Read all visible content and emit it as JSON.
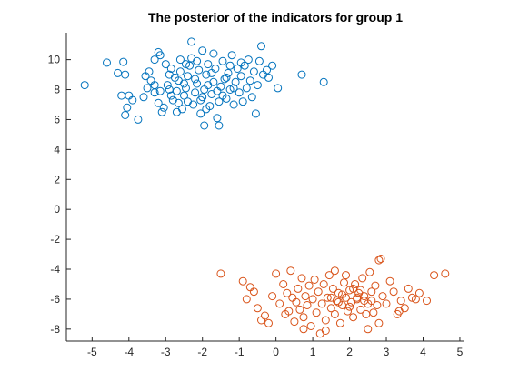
{
  "chart_data": {
    "type": "scatter",
    "title": "The posterior of the indicators for group 1",
    "xlabel": "",
    "ylabel": "",
    "xlim": [
      -5.7,
      5.1
    ],
    "ylim": [
      -8.8,
      11.8
    ],
    "xticks": [
      -5,
      -4,
      -3,
      -2,
      -1,
      0,
      1,
      2,
      3,
      4,
      5
    ],
    "yticks": [
      -8,
      -6,
      -4,
      -2,
      0,
      2,
      4,
      6,
      8,
      10
    ],
    "grid": false,
    "legend": "none",
    "marker": "open-circle",
    "series": [
      {
        "color": "#0072BD",
        "points": [
          [
            -5.2,
            8.3
          ],
          [
            -4.6,
            9.8
          ],
          [
            -4.3,
            9.1
          ],
          [
            -4.15,
            9.85
          ],
          [
            -4.1,
            9.0
          ],
          [
            -4.2,
            7.6
          ],
          [
            -4.0,
            7.6
          ],
          [
            -3.9,
            7.3
          ],
          [
            -4.05,
            6.8
          ],
          [
            -4.1,
            6.3
          ],
          [
            -3.75,
            6.0
          ],
          [
            -3.6,
            7.5
          ],
          [
            -3.5,
            8.1
          ],
          [
            -3.45,
            9.2
          ],
          [
            -3.3,
            10.0
          ],
          [
            -3.2,
            10.5
          ],
          [
            -3.15,
            10.3
          ],
          [
            -3.4,
            8.6
          ],
          [
            -3.3,
            7.8
          ],
          [
            -3.2,
            7.1
          ],
          [
            -3.1,
            6.5
          ],
          [
            -3.05,
            6.8
          ],
          [
            -2.95,
            8.3
          ],
          [
            -2.9,
            9.0
          ],
          [
            -2.85,
            9.4
          ],
          [
            -2.8,
            7.3
          ],
          [
            -2.7,
            7.9
          ],
          [
            -2.65,
            8.6
          ],
          [
            -2.6,
            9.2
          ],
          [
            -2.55,
            6.7
          ],
          [
            -2.5,
            7.6
          ],
          [
            -2.45,
            8.1
          ],
          [
            -2.4,
            8.9
          ],
          [
            -2.35,
            9.6
          ],
          [
            -2.3,
            10.1
          ],
          [
            -2.25,
            7.0
          ],
          [
            -2.2,
            7.8
          ],
          [
            -2.15,
            8.4
          ],
          [
            -2.1,
            9.3
          ],
          [
            -2.05,
            6.4
          ],
          [
            -2.0,
            7.5
          ],
          [
            -1.95,
            8.0
          ],
          [
            -1.9,
            9.0
          ],
          [
            -1.85,
            9.7
          ],
          [
            -1.8,
            6.9
          ],
          [
            -1.75,
            7.7
          ],
          [
            -1.7,
            8.5
          ],
          [
            -1.65,
            9.4
          ],
          [
            -1.6,
            6.1
          ],
          [
            -1.55,
            7.2
          ],
          [
            -1.5,
            8.2
          ],
          [
            -1.45,
            9.9
          ],
          [
            -1.4,
            8.7
          ],
          [
            -1.35,
            7.4
          ],
          [
            -1.3,
            9.1
          ],
          [
            -1.25,
            8.0
          ],
          [
            -1.2,
            10.3
          ],
          [
            -1.15,
            7.0
          ],
          [
            -1.1,
            8.5
          ],
          [
            -1.05,
            9.4
          ],
          [
            -1.0,
            7.8
          ],
          [
            -0.95,
            8.9
          ],
          [
            -0.9,
            7.2
          ],
          [
            -0.85,
            9.6
          ],
          [
            -0.8,
            8.1
          ],
          [
            -0.75,
            10.0
          ],
          [
            -0.7,
            8.6
          ],
          [
            -0.65,
            7.5
          ],
          [
            -0.6,
            9.2
          ],
          [
            -0.55,
            6.4
          ],
          [
            -0.5,
            8.3
          ],
          [
            -0.45,
            9.9
          ],
          [
            -0.4,
            10.9
          ],
          [
            -0.35,
            9.0
          ],
          [
            -0.25,
            9.3
          ],
          [
            -0.2,
            8.8
          ],
          [
            -0.1,
            9.6
          ],
          [
            0.05,
            8.1
          ],
          [
            0.7,
            9.0
          ],
          [
            1.3,
            8.5
          ],
          [
            -2.3,
            11.2
          ],
          [
            -2.0,
            10.6
          ],
          [
            -1.7,
            10.4
          ],
          [
            -1.95,
            5.6
          ],
          [
            -1.55,
            5.6
          ],
          [
            -3.3,
            8.3
          ],
          [
            -2.75,
            8.8
          ],
          [
            -2.5,
            8.4
          ],
          [
            -1.85,
            8.3
          ],
          [
            -1.35,
            8.8
          ],
          [
            -2.15,
            9.9
          ],
          [
            -2.65,
            7.1
          ],
          [
            -3.0,
            9.7
          ],
          [
            -2.4,
            7.2
          ],
          [
            -1.75,
            9.1
          ],
          [
            -2.9,
            8.0
          ],
          [
            -2.2,
            8.7
          ],
          [
            -1.6,
            7.9
          ],
          [
            -2.6,
            10.0
          ],
          [
            -1.25,
            9.6
          ],
          [
            -3.55,
            8.9
          ],
          [
            -2.85,
            7.6
          ],
          [
            -2.05,
            7.3
          ],
          [
            -1.45,
            7.6
          ],
          [
            -0.95,
            9.8
          ],
          [
            -3.15,
            7.9
          ],
          [
            -2.45,
            9.7
          ],
          [
            -1.9,
            6.7
          ],
          [
            -2.7,
            6.5
          ],
          [
            -1.15,
            8.1
          ]
        ]
      },
      {
        "color": "#D95319",
        "points": [
          [
            -1.5,
            -4.3
          ],
          [
            -0.9,
            -4.8
          ],
          [
            -0.7,
            -5.2
          ],
          [
            -0.6,
            -5.5
          ],
          [
            -0.8,
            -6.0
          ],
          [
            -0.5,
            -6.6
          ],
          [
            -0.3,
            -7.1
          ],
          [
            -0.4,
            -7.4
          ],
          [
            -0.2,
            -7.6
          ],
          [
            -0.1,
            -5.8
          ],
          [
            0.0,
            -4.3
          ],
          [
            0.1,
            -6.3
          ],
          [
            0.2,
            -5.0
          ],
          [
            0.25,
            -7.0
          ],
          [
            0.3,
            -5.6
          ],
          [
            0.35,
            -6.8
          ],
          [
            0.4,
            -4.1
          ],
          [
            0.45,
            -5.9
          ],
          [
            0.5,
            -7.5
          ],
          [
            0.55,
            -6.2
          ],
          [
            0.6,
            -5.3
          ],
          [
            0.65,
            -6.7
          ],
          [
            0.7,
            -4.6
          ],
          [
            0.75,
            -7.2
          ],
          [
            0.8,
            -5.8
          ],
          [
            0.85,
            -6.4
          ],
          [
            0.9,
            -5.1
          ],
          [
            0.95,
            -7.8
          ],
          [
            1.0,
            -6.0
          ],
          [
            1.05,
            -4.7
          ],
          [
            1.1,
            -6.9
          ],
          [
            1.15,
            -5.5
          ],
          [
            1.2,
            -8.3
          ],
          [
            1.25,
            -6.3
          ],
          [
            1.3,
            -5.0
          ],
          [
            1.35,
            -7.4
          ],
          [
            1.4,
            -5.9
          ],
          [
            1.45,
            -4.4
          ],
          [
            1.5,
            -6.6
          ],
          [
            1.55,
            -5.3
          ],
          [
            1.6,
            -7.0
          ],
          [
            1.65,
            -6.1
          ],
          [
            1.7,
            -5.6
          ],
          [
            1.75,
            -7.6
          ],
          [
            1.8,
            -6.4
          ],
          [
            1.85,
            -4.9
          ],
          [
            1.9,
            -5.9
          ],
          [
            1.95,
            -6.8
          ],
          [
            2.0,
            -5.4
          ],
          [
            2.05,
            -6.2
          ],
          [
            2.1,
            -7.2
          ],
          [
            2.15,
            -5.0
          ],
          [
            2.2,
            -6.0
          ],
          [
            2.25,
            -5.6
          ],
          [
            2.3,
            -6.7
          ],
          [
            2.35,
            -4.6
          ],
          [
            2.4,
            -5.8
          ],
          [
            2.45,
            -7.0
          ],
          [
            2.5,
            -6.3
          ],
          [
            2.55,
            -4.2
          ],
          [
            2.6,
            -5.5
          ],
          [
            2.65,
            -6.9
          ],
          [
            2.7,
            -5.1
          ],
          [
            2.75,
            -6.4
          ],
          [
            2.8,
            -7.6
          ],
          [
            2.85,
            -3.3
          ],
          [
            2.9,
            -5.8
          ],
          [
            3.0,
            -6.3
          ],
          [
            3.1,
            -4.8
          ],
          [
            3.2,
            -5.5
          ],
          [
            3.3,
            -7.0
          ],
          [
            3.4,
            -6.1
          ],
          [
            3.5,
            -6.6
          ],
          [
            3.6,
            -5.3
          ],
          [
            3.8,
            -6.0
          ],
          [
            3.9,
            -5.6
          ],
          [
            4.1,
            -6.1
          ],
          [
            4.3,
            -4.4
          ],
          [
            4.6,
            -4.3
          ],
          [
            1.6,
            -4.1
          ],
          [
            1.9,
            -4.4
          ],
          [
            2.1,
            -5.3
          ],
          [
            2.0,
            -6.5
          ],
          [
            1.8,
            -5.7
          ],
          [
            2.2,
            -5.9
          ],
          [
            2.4,
            -6.1
          ],
          [
            1.7,
            -6.2
          ],
          [
            2.3,
            -5.4
          ],
          [
            1.5,
            -5.9
          ],
          [
            2.6,
            -6.1
          ],
          [
            2.8,
            -3.4
          ],
          [
            2.5,
            -8.0
          ],
          [
            1.35,
            -8.1
          ],
          [
            0.75,
            -8.0
          ],
          [
            3.35,
            -6.8
          ],
          [
            3.7,
            -5.9
          ]
        ]
      }
    ]
  }
}
